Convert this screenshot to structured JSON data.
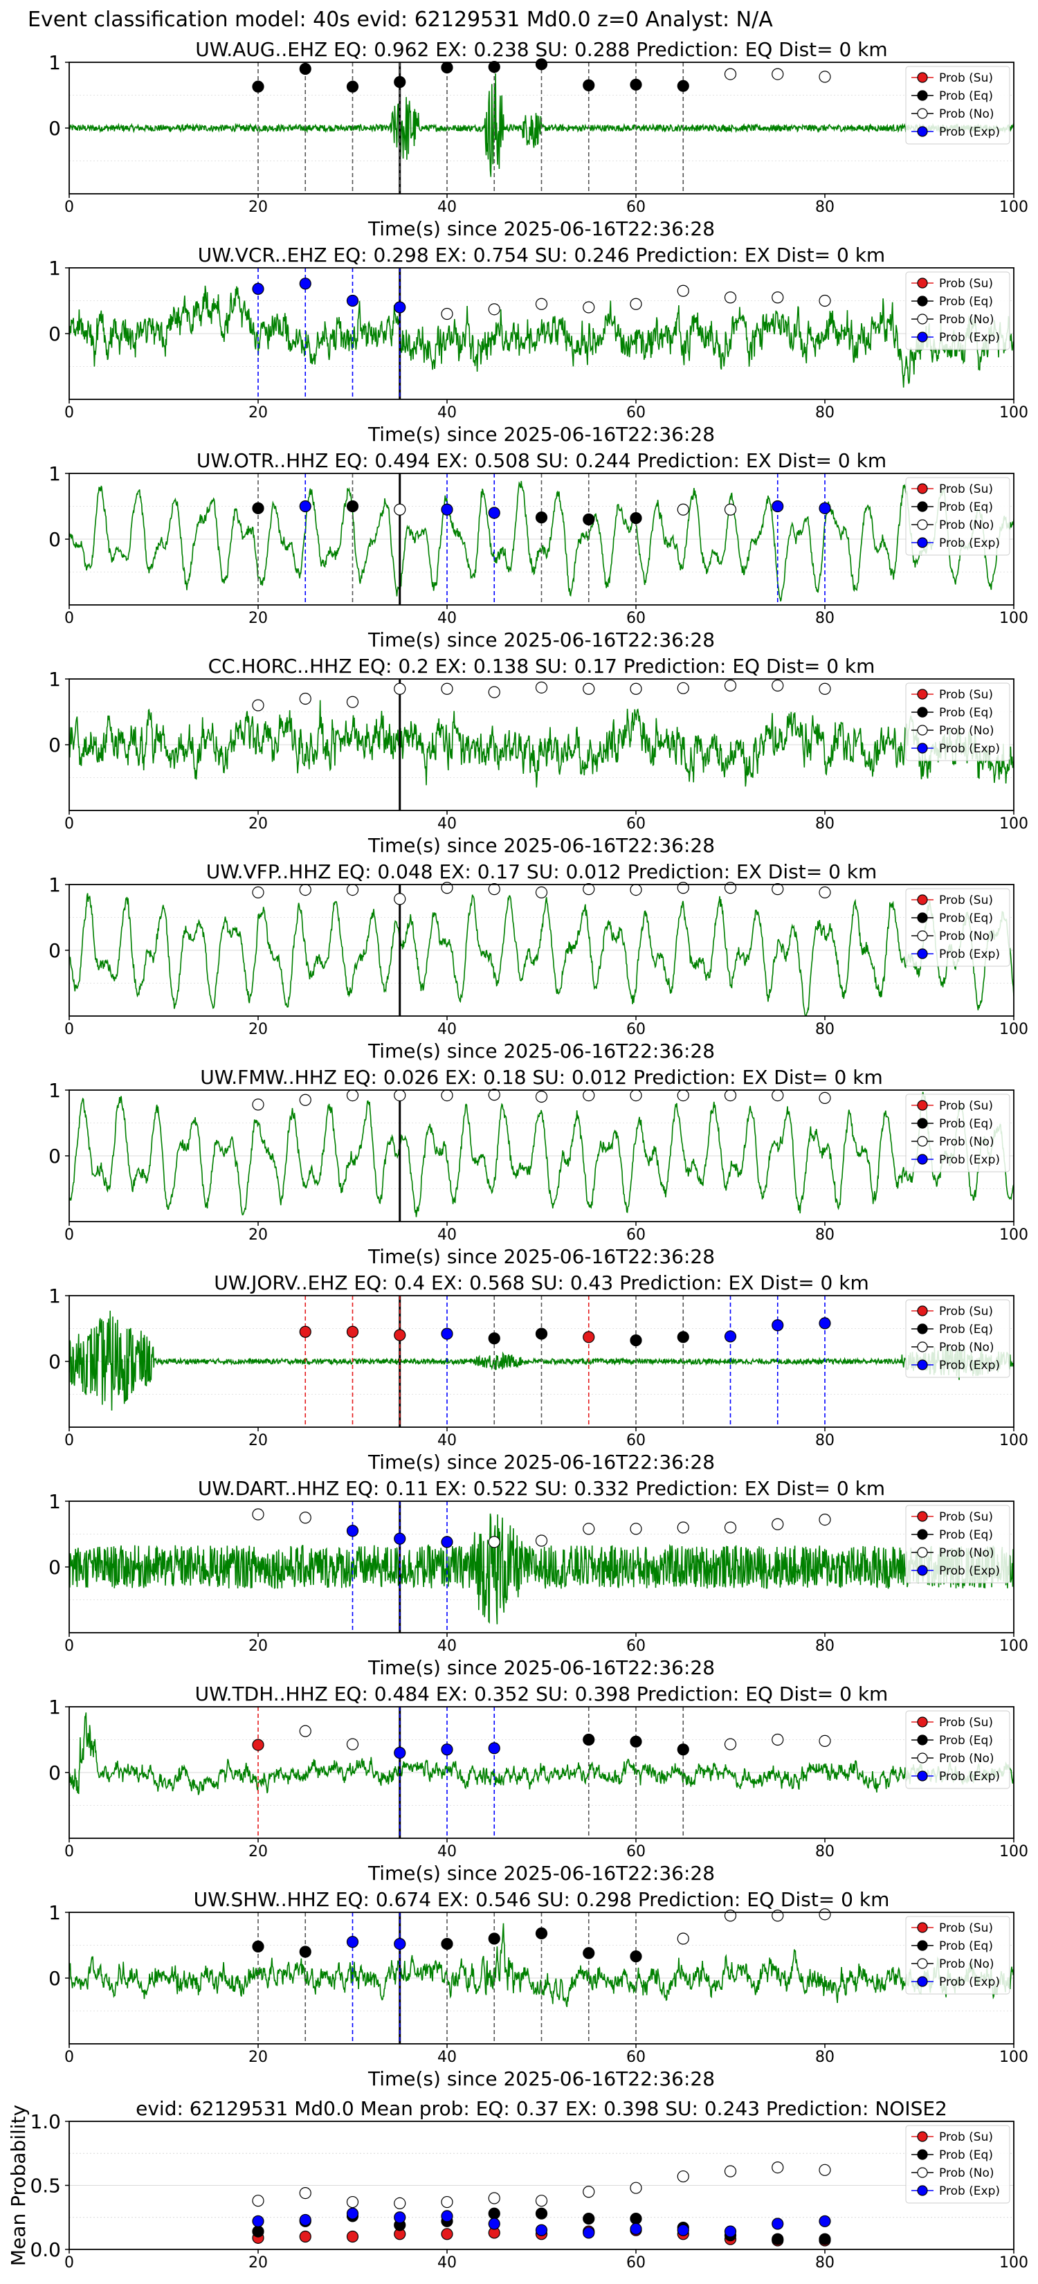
{
  "page_title": "Event classification model: 40s evid: 62129531 Md0.0 z=0 Analyst: N/A",
  "colors": {
    "waveform": "#008000",
    "prob_su": "#e41a1c",
    "prob_eq": "#000000",
    "prob_no": "#ffffff",
    "prob_exp": "#0000ff",
    "origin_line": "#000000",
    "grid": "#d9d9d9"
  },
  "legend": [
    "Prob (Su)",
    "Prob (Eq)",
    "Prob (No)",
    "Prob (Exp)"
  ],
  "chart_data": [
    {
      "type": "scatter",
      "station": "UW.AUG..EHZ",
      "title": "UW.AUG..EHZ   EQ: 0.962  EX: 0.238  SU: 0.288   Prediction: EQ    Dist= 0 km",
      "xlabel": "Time(s) since 2025-06-16T22:36:28",
      "ylabel": "",
      "xlim": [
        0,
        100
      ],
      "ylim": [
        -1,
        1
      ],
      "xticks": [
        0,
        20,
        40,
        60,
        80,
        100
      ],
      "yticks": [
        0,
        1
      ],
      "legend": "top-right",
      "grid": true,
      "origin_time": 35,
      "waveform": {
        "style": "quiet-with-burst",
        "amplitude": 0.05,
        "bursts": [
          [
            34,
            37,
            0.6
          ],
          [
            44,
            46,
            1.0
          ],
          [
            48,
            50,
            0.4
          ]
        ]
      },
      "points": {
        "x": [
          20,
          25,
          30,
          35,
          40,
          45,
          50,
          55,
          60,
          65,
          70,
          75,
          80
        ],
        "class": [
          "Eq",
          "Eq",
          "Eq",
          "Eq",
          "Eq",
          "Eq",
          "Eq",
          "Eq",
          "Eq",
          "Eq",
          "No",
          "No",
          "No"
        ],
        "y": [
          0.63,
          0.9,
          0.63,
          0.7,
          0.92,
          0.93,
          0.97,
          0.65,
          0.66,
          0.64,
          0.82,
          0.82,
          0.78
        ]
      }
    },
    {
      "type": "scatter",
      "station": "UW.VCR..EHZ",
      "title": "UW.VCR..EHZ   EQ: 0.298  EX: 0.754  SU: 0.246   Prediction: EX    Dist= 0 km",
      "xlabel": "Time(s) since 2025-06-16T22:36:28",
      "ylabel": "",
      "xlim": [
        0,
        100
      ],
      "ylim": [
        -1,
        1
      ],
      "xticks": [
        0,
        20,
        40,
        60,
        80,
        100
      ],
      "yticks": [
        0,
        1
      ],
      "legend": "top-right",
      "grid": true,
      "origin_time": 35,
      "waveform": {
        "style": "noisy",
        "amplitude": 0.45
      },
      "points": {
        "x": [
          20,
          25,
          30,
          35,
          40,
          45,
          50,
          55,
          60,
          65,
          70,
          75,
          80
        ],
        "class": [
          "Exp",
          "Exp",
          "Exp",
          "Exp",
          "No",
          "No",
          "No",
          "No",
          "No",
          "No",
          "No",
          "No",
          "No"
        ],
        "y": [
          0.68,
          0.76,
          0.5,
          0.4,
          0.3,
          0.37,
          0.45,
          0.4,
          0.45,
          0.65,
          0.55,
          0.55,
          0.5
        ]
      }
    },
    {
      "type": "scatter",
      "station": "UW.OTR..HHZ",
      "title": "UW.OTR..HHZ   EQ: 0.494  EX: 0.508  SU: 0.244   Prediction: EX    Dist= 0 km",
      "xlabel": "Time(s) since 2025-06-16T22:36:28",
      "ylabel": "",
      "xlim": [
        0,
        100
      ],
      "ylim": [
        -1,
        1
      ],
      "xticks": [
        0,
        20,
        40,
        60,
        80,
        100
      ],
      "yticks": [
        0,
        1
      ],
      "legend": "top-right",
      "grid": true,
      "origin_time": 35,
      "waveform": {
        "style": "long-period",
        "amplitude": 0.55
      },
      "points": {
        "x": [
          20,
          25,
          30,
          35,
          40,
          45,
          50,
          55,
          60,
          65,
          70,
          75,
          80
        ],
        "class": [
          "Eq",
          "Exp",
          "Eq",
          "No",
          "Exp",
          "Exp",
          "Eq",
          "Eq",
          "Eq",
          "No",
          "No",
          "Exp",
          "Exp"
        ],
        "y": [
          0.47,
          0.5,
          0.5,
          0.45,
          0.45,
          0.4,
          0.33,
          0.3,
          0.32,
          0.45,
          0.45,
          0.5,
          0.47
        ]
      }
    },
    {
      "type": "scatter",
      "station": "CC.HORC..HHZ",
      "title": "CC.HORC..HHZ   EQ: 0.2  EX: 0.138  SU: 0.17   Prediction: EQ    Dist= 0 km",
      "xlabel": "Time(s) since 2025-06-16T22:36:28",
      "ylabel": "",
      "xlim": [
        0,
        100
      ],
      "ylim": [
        -1,
        1
      ],
      "xticks": [
        0,
        20,
        40,
        60,
        80,
        100
      ],
      "yticks": [
        0,
        1
      ],
      "legend": "top-right",
      "grid": true,
      "origin_time": 35,
      "waveform": {
        "style": "noisy",
        "amplitude": 0.5
      },
      "points": {
        "x": [
          20,
          25,
          30,
          35,
          40,
          45,
          50,
          55,
          60,
          65,
          70,
          75,
          80
        ],
        "class": [
          "No",
          "No",
          "No",
          "No",
          "No",
          "No",
          "No",
          "No",
          "No",
          "No",
          "No",
          "No",
          "No"
        ],
        "y": [
          0.6,
          0.7,
          0.65,
          0.85,
          0.85,
          0.8,
          0.87,
          0.85,
          0.85,
          0.86,
          0.9,
          0.9,
          0.85
        ]
      }
    },
    {
      "type": "scatter",
      "station": "UW.VFP..HHZ",
      "title": "UW.VFP..HHZ   EQ: 0.048  EX: 0.17  SU: 0.012   Prediction: EX    Dist= 0 km",
      "xlabel": "Time(s) since 2025-06-16T22:36:28",
      "ylabel": "",
      "xlim": [
        0,
        100
      ],
      "ylim": [
        -1,
        1
      ],
      "xticks": [
        0,
        20,
        40,
        60,
        80,
        100
      ],
      "yticks": [
        0,
        1
      ],
      "legend": "top-right",
      "grid": true,
      "origin_time": 35,
      "waveform": {
        "style": "long-period",
        "amplitude": 0.6
      },
      "points": {
        "x": [
          20,
          25,
          30,
          35,
          40,
          45,
          50,
          55,
          60,
          65,
          70,
          75,
          80
        ],
        "class": [
          "No",
          "No",
          "No",
          "No",
          "No",
          "No",
          "No",
          "No",
          "No",
          "No",
          "No",
          "No",
          "No"
        ],
        "y": [
          0.88,
          0.92,
          0.92,
          0.78,
          0.95,
          0.93,
          0.88,
          0.93,
          0.92,
          0.95,
          0.95,
          0.93,
          0.88
        ]
      }
    },
    {
      "type": "scatter",
      "station": "UW.FMW..HHZ",
      "title": "UW.FMW..HHZ   EQ: 0.026  EX: 0.18  SU: 0.012   Prediction: EX    Dist= 0 km",
      "xlabel": "Time(s) since 2025-06-16T22:36:28",
      "ylabel": "",
      "xlim": [
        0,
        100
      ],
      "ylim": [
        -1,
        1
      ],
      "xticks": [
        0,
        20,
        40,
        60,
        80,
        100
      ],
      "yticks": [
        0,
        1
      ],
      "legend": "top-right",
      "grid": true,
      "origin_time": 35,
      "waveform": {
        "style": "long-period",
        "amplitude": 0.6
      },
      "points": {
        "x": [
          20,
          25,
          30,
          35,
          40,
          45,
          50,
          55,
          60,
          65,
          70,
          75,
          80
        ],
        "class": [
          "No",
          "No",
          "No",
          "No",
          "No",
          "No",
          "No",
          "No",
          "No",
          "No",
          "No",
          "No",
          "No"
        ],
        "y": [
          0.78,
          0.85,
          0.92,
          0.92,
          0.92,
          0.93,
          0.9,
          0.92,
          0.92,
          0.92,
          0.92,
          0.92,
          0.88
        ]
      }
    },
    {
      "type": "scatter",
      "station": "UW.JORV..EHZ",
      "title": "UW.JORV..EHZ   EQ: 0.4  EX: 0.568  SU: 0.43   Prediction: EX    Dist= 0 km",
      "xlabel": "Time(s) since 2025-06-16T22:36:28",
      "ylabel": "",
      "xlim": [
        0,
        100
      ],
      "ylim": [
        -1,
        1
      ],
      "xticks": [
        0,
        20,
        40,
        60,
        80,
        100
      ],
      "yticks": [
        0,
        1
      ],
      "legend": "top-right",
      "grid": true,
      "origin_time": 35,
      "waveform": {
        "style": "quiet-with-burst",
        "amplitude": 0.04,
        "bursts": [
          [
            0,
            9,
            0.8
          ],
          [
            43,
            48,
            0.15
          ],
          [
            88,
            100,
            0.3
          ]
        ]
      },
      "points": {
        "x": [
          25,
          30,
          35,
          40,
          45,
          50,
          55,
          60,
          65,
          70,
          75,
          80
        ],
        "class": [
          "Su",
          "Su",
          "Su",
          "Exp",
          "Eq",
          "Eq",
          "Su",
          "Eq",
          "Eq",
          "Exp",
          "Exp",
          "Exp"
        ],
        "y": [
          0.45,
          0.45,
          0.4,
          0.42,
          0.35,
          0.42,
          0.37,
          0.32,
          0.37,
          0.38,
          0.55,
          0.58
        ]
      }
    },
    {
      "type": "scatter",
      "station": "UW.DART..HHZ",
      "title": "UW.DART..HHZ   EQ: 0.11  EX: 0.522  SU: 0.332   Prediction: EX    Dist= 0 km",
      "xlabel": "Time(s) since 2025-06-16T22:36:28",
      "ylabel": "",
      "xlim": [
        0,
        100
      ],
      "ylim": [
        -1,
        1
      ],
      "xticks": [
        0,
        20,
        40,
        60,
        80,
        100
      ],
      "yticks": [
        0,
        1
      ],
      "legend": "top-right",
      "grid": true,
      "origin_time": 35,
      "waveform": {
        "style": "dense-noise",
        "amplitude": 0.3,
        "bursts": [
          [
            42,
            48,
            0.9
          ]
        ]
      },
      "points": {
        "x": [
          20,
          25,
          30,
          35,
          40,
          45,
          50,
          55,
          60,
          65,
          70,
          75,
          80
        ],
        "class": [
          "No",
          "No",
          "Exp",
          "Exp",
          "Exp",
          "No",
          "No",
          "No",
          "No",
          "No",
          "No",
          "No",
          "No"
        ],
        "y": [
          0.8,
          0.75,
          0.55,
          0.43,
          0.38,
          0.38,
          0.4,
          0.58,
          0.58,
          0.6,
          0.6,
          0.65,
          0.72
        ]
      }
    },
    {
      "type": "scatter",
      "station": "UW.TDH..HHZ",
      "title": "UW.TDH..HHZ   EQ: 0.484  EX: 0.352  SU: 0.398   Prediction: EQ    Dist= 0 km",
      "xlabel": "Time(s) since 2025-06-16T22:36:28",
      "ylabel": "",
      "xlim": [
        0,
        100
      ],
      "ylim": [
        -1,
        1
      ],
      "xticks": [
        0,
        20,
        40,
        60,
        80,
        100
      ],
      "yticks": [
        0,
        1
      ],
      "legend": "top-right",
      "grid": true,
      "origin_time": 35,
      "waveform": {
        "style": "noisy",
        "amplitude": 0.22,
        "bursts": [
          [
            0,
            3,
            0.8
          ]
        ]
      },
      "points": {
        "x": [
          20,
          25,
          30,
          35,
          40,
          45,
          55,
          60,
          65,
          70,
          75,
          80
        ],
        "class": [
          "Su",
          "No",
          "No",
          "Exp",
          "Exp",
          "Exp",
          "Eq",
          "Eq",
          "Eq",
          "No",
          "No",
          "No"
        ],
        "y": [
          0.42,
          0.63,
          0.43,
          0.3,
          0.35,
          0.37,
          0.5,
          0.47,
          0.35,
          0.43,
          0.5,
          0.48
        ]
      }
    },
    {
      "type": "scatter",
      "station": "UW.SHW..HHZ",
      "title": "UW.SHW..HHZ   EQ: 0.674  EX: 0.546  SU: 0.298   Prediction: EQ    Dist= 0 km",
      "xlabel": "Time(s) since 2025-06-16T22:36:28",
      "ylabel": "",
      "xlim": [
        0,
        100
      ],
      "ylim": [
        -1,
        1
      ],
      "xticks": [
        0,
        20,
        40,
        60,
        80,
        100
      ],
      "yticks": [
        0,
        1
      ],
      "legend": "top-right",
      "grid": true,
      "origin_time": 35,
      "waveform": {
        "style": "noisy",
        "amplitude": 0.3,
        "bursts": [
          [
            43,
            48,
            0.7
          ]
        ]
      },
      "points": {
        "x": [
          20,
          25,
          30,
          35,
          40,
          45,
          50,
          55,
          60,
          65,
          70,
          75,
          80
        ],
        "class": [
          "Eq",
          "Eq",
          "Exp",
          "Exp",
          "Eq",
          "Eq",
          "Eq",
          "Eq",
          "Eq",
          "No",
          "No",
          "No",
          "No"
        ],
        "y": [
          0.48,
          0.4,
          0.55,
          0.52,
          0.52,
          0.6,
          0.68,
          0.38,
          0.33,
          0.6,
          0.95,
          0.95,
          0.97
        ]
      }
    },
    {
      "type": "scatter",
      "station": "mean",
      "title": "evid: 62129531  Md0.0   Mean prob:   EQ: 0.37  EX: 0.398  SU: 0.243   Prediction: NOISE2",
      "xlabel": "",
      "ylabel": "Mean Probability",
      "xlim": [
        0,
        100
      ],
      "ylim": [
        0,
        1
      ],
      "xticks": [
        0,
        20,
        40,
        60,
        80,
        100
      ],
      "yticks": [
        0.0,
        0.5,
        1.0
      ],
      "legend": "top-right",
      "grid": true,
      "origin_time": null,
      "points": {
        "series": [
          {
            "name": "Prob (Su)",
            "class": "Su",
            "x": [
              20,
              25,
              30,
              35,
              40,
              45,
              50,
              55,
              60,
              65,
              70,
              75,
              80
            ],
            "y": [
              0.09,
              0.1,
              0.1,
              0.12,
              0.12,
              0.13,
              0.12,
              0.14,
              0.15,
              0.12,
              0.08,
              0.07,
              0.07
            ]
          },
          {
            "name": "Prob (Eq)",
            "class": "Eq",
            "x": [
              20,
              25,
              30,
              35,
              40,
              45,
              50,
              55,
              60,
              65,
              70,
              75,
              80
            ],
            "y": [
              0.14,
              0.22,
              0.26,
              0.19,
              0.22,
              0.28,
              0.28,
              0.24,
              0.24,
              0.17,
              0.11,
              0.08,
              0.08
            ]
          },
          {
            "name": "Prob (No)",
            "class": "No",
            "x": [
              20,
              25,
              30,
              35,
              40,
              45,
              50,
              55,
              60,
              65,
              70,
              75,
              80
            ],
            "y": [
              0.38,
              0.44,
              0.37,
              0.36,
              0.37,
              0.4,
              0.38,
              0.45,
              0.48,
              0.57,
              0.61,
              0.64,
              0.62
            ]
          },
          {
            "name": "Prob (Exp)",
            "class": "Exp",
            "x": [
              20,
              25,
              30,
              35,
              40,
              45,
              50,
              55,
              60,
              65,
              70,
              75,
              80
            ],
            "y": [
              0.22,
              0.23,
              0.28,
              0.25,
              0.26,
              0.2,
              0.15,
              0.13,
              0.16,
              0.15,
              0.14,
              0.2,
              0.22
            ]
          }
        ]
      }
    }
  ]
}
